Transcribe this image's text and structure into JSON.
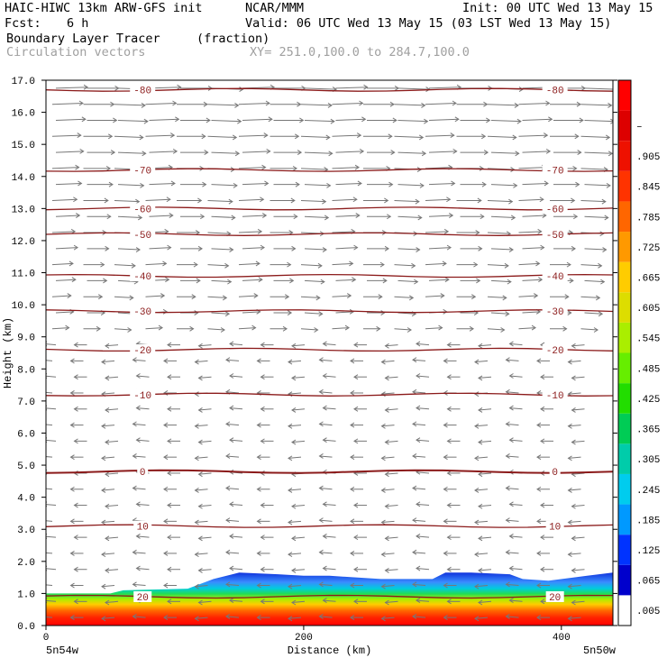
{
  "header": {
    "model": "HAIC-HIWC 13km ARW-GFS init",
    "org": "NCAR/MMM",
    "init": "Init: 00 UTC Wed 13 May 15",
    "fcst_label": "Fcst:",
    "fcst_value": "6 h",
    "valid": "Valid: 06 UTC Wed 13 May 15 (03 LST Wed 13 May 15)",
    "field": "Boundary Layer Tracer",
    "field_units": "(fraction)",
    "vectors": "Circulation vectors",
    "xsec": "XY= 251.0,100.0 to 284.7,100.0"
  },
  "chart_data": {
    "type": "heatmap",
    "xlabel": "Distance (km)",
    "ylabel": "Height (km)",
    "xlim": [
      0,
      440
    ],
    "ylim": [
      0,
      17
    ],
    "x_ticks": [
      "0",
      "200",
      "400"
    ],
    "y_ticks": [
      "0.0",
      "1.0",
      "2.0",
      "3.0",
      "4.0",
      "5.0",
      "6.0",
      "7.0",
      "8.0",
      "9.0",
      "10.0",
      "11.0",
      "12.0",
      "13.0",
      "14.0",
      "15.0",
      "16.0",
      "17.0"
    ],
    "x_endpoint_labels": [
      "5n54w",
      "5n50w"
    ],
    "colorbar": {
      "labels": [
        ".005",
        ".065",
        ".125",
        ".185",
        ".245",
        ".305",
        ".365",
        ".425",
        ".485",
        ".545",
        ".605",
        ".665",
        ".725",
        ".785",
        ".845",
        ".905",
        "–"
      ],
      "colors": [
        "#ffffff",
        "#0000cc",
        "#0033ff",
        "#0099ff",
        "#00ccee",
        "#00ccaa",
        "#00cc55",
        "#22dd00",
        "#66ee00",
        "#aaee00",
        "#dddd00",
        "#ffcc00",
        "#ff9900",
        "#ff6600",
        "#ff3300",
        "#ee1100",
        "#dd0000",
        "#ff0000"
      ]
    },
    "tracer_top_km": {
      "x": [
        0,
        50,
        60,
        110,
        130,
        150,
        180,
        200,
        220,
        260,
        300,
        310,
        330,
        360,
        370,
        390,
        420,
        440
      ],
      "y": [
        1.0,
        1.0,
        1.1,
        1.15,
        1.45,
        1.65,
        1.6,
        1.55,
        1.55,
        1.45,
        1.45,
        1.65,
        1.65,
        1.6,
        1.45,
        1.4,
        1.55,
        1.65
      ]
    },
    "temperature_contours": [
      {
        "label": "-80",
        "height_km": 16.7
      },
      {
        "label": "-70",
        "height_km": 14.2
      },
      {
        "label": "-60",
        "height_km": 13.0
      },
      {
        "label": "-50",
        "height_km": 12.2
      },
      {
        "label": "-40",
        "height_km": 10.9
      },
      {
        "label": "-30",
        "height_km": 9.8
      },
      {
        "label": "-20",
        "height_km": 8.6
      },
      {
        "label": "-10",
        "height_km": 7.2
      },
      {
        "label": "0",
        "height_km": 4.8
      },
      {
        "label": "10",
        "height_km": 3.1
      },
      {
        "label": "20",
        "height_km": 0.9
      }
    ],
    "wind_bands": [
      {
        "from_km": 0,
        "to_km": 9,
        "direction": "westward"
      },
      {
        "from_km": 9,
        "to_km": 17,
        "direction": "eastward"
      }
    ]
  }
}
